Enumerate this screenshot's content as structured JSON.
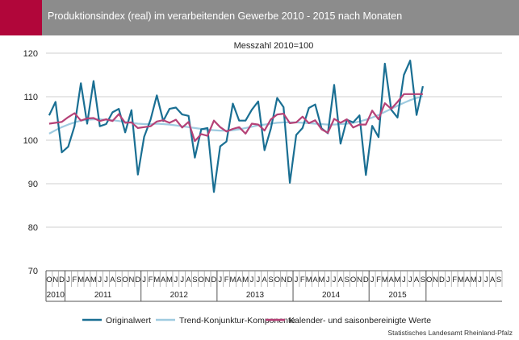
{
  "title": "Produktionsindex (real) im verarbeitenden Gewerbe 2010 - 2015 nach Monaten",
  "source": "Statistisches Landesamt Rheinland-Pfalz",
  "colors": {
    "accent": "#b1063a",
    "header": "#8c8c8c",
    "original": "#1a6f93",
    "trend": "#9fcbe0",
    "seasonal": "#b54277"
  },
  "chart_data": {
    "type": "line",
    "subtitle": "Messzahl 2010=100",
    "ylim": [
      70,
      120
    ],
    "yticks": [
      70,
      80,
      90,
      100,
      110,
      120
    ],
    "grid": true,
    "legend_placement": "bottom",
    "month_labels": [
      "O",
      "N",
      "D",
      "J",
      "F",
      "M",
      "A",
      "M",
      "J",
      "J",
      "A",
      "S",
      "O",
      "N",
      "D",
      "J",
      "F",
      "M",
      "A",
      "M",
      "J",
      "J",
      "A",
      "S",
      "O",
      "N",
      "D",
      "J",
      "F",
      "M",
      "A",
      "M",
      "J",
      "J",
      "A",
      "S",
      "O",
      "N",
      "D",
      "J",
      "F",
      "M",
      "A",
      "M",
      "J",
      "J",
      "A",
      "S",
      "O",
      "N",
      "D",
      "J",
      "F",
      "M",
      "A",
      "M",
      "J",
      "J",
      "A",
      "S",
      "O",
      "N",
      "D",
      "J",
      "F",
      "M",
      "A",
      "M",
      "J",
      "J",
      "A",
      "S"
    ],
    "year_groups": [
      {
        "label": "2010",
        "months": 3
      },
      {
        "label": "2011",
        "months": 12
      },
      {
        "label": "2012",
        "months": 12
      },
      {
        "label": "2013",
        "months": 12
      },
      {
        "label": "2014",
        "months": 12
      },
      {
        "label": "2015",
        "months": 9
      }
    ],
    "series": [
      {
        "name": "Originalwert",
        "values": [
          105.7,
          108.8,
          97.2,
          98.5,
          103.2,
          113.1,
          103.8,
          113.6,
          103.2,
          103.7,
          106.4,
          107.2,
          101.8,
          106.9,
          92.1,
          100.8,
          104.7,
          110.3,
          104.4,
          107.2,
          107.5,
          105.9,
          105.6,
          96.0,
          102.5,
          102.8,
          88.1,
          98.6,
          99.7,
          108.4,
          104.5,
          104.5,
          107.0,
          108.9,
          97.7,
          102.7,
          109.7,
          107.6,
          90.2,
          101.2,
          102.8,
          107.4,
          108.2,
          102.7,
          101.6,
          112.7,
          99.2,
          104.7,
          104.1,
          105.7,
          92.0,
          103.3,
          100.7,
          117.6,
          107.0,
          105.2,
          115.0,
          118.3,
          105.8,
          112.4
        ]
      },
      {
        "name": "Trend-Konjunktur-Komponente",
        "values": [
          101.5,
          102.3,
          103.0,
          103.6,
          104.1,
          104.5,
          104.7,
          104.8,
          104.8,
          104.7,
          104.6,
          104.4,
          104.2,
          104.0,
          103.8,
          103.7,
          103.7,
          103.8,
          103.7,
          103.6,
          103.4,
          103.2,
          103.0,
          102.8,
          102.6,
          102.4,
          102.3,
          102.2,
          102.2,
          102.3,
          102.5,
          102.8,
          103.1,
          103.4,
          103.6,
          103.8,
          104.0,
          104.1,
          104.1,
          104.1,
          104.0,
          103.9,
          103.8,
          103.7,
          103.6,
          103.6,
          103.7,
          103.8,
          104.0,
          104.3,
          104.7,
          105.2,
          105.8,
          106.5,
          107.2,
          107.9,
          108.6,
          109.2,
          109.7,
          110.1
        ]
      },
      {
        "name": "Kalender- und saisonbereinigte Werte",
        "values": [
          103.8,
          104.0,
          104.2,
          105.3,
          106.2,
          104.5,
          105.0,
          105.1,
          104.4,
          104.8,
          104.4,
          106.0,
          104.0,
          104.1,
          102.8,
          103.0,
          103.2,
          104.3,
          104.6,
          104.0,
          104.7,
          102.9,
          104.2,
          99.8,
          101.4,
          101.0,
          104.5,
          103.0,
          102.0,
          102.6,
          103.0,
          101.5,
          103.8,
          103.6,
          102.2,
          104.8,
          105.9,
          106.1,
          103.9,
          104.1,
          105.4,
          103.9,
          104.6,
          102.5,
          101.7,
          104.9,
          104.0,
          104.8,
          102.9,
          103.6,
          103.6,
          106.8,
          104.8,
          108.5,
          107.2,
          108.8,
          110.6,
          110.6,
          110.6,
          110.6
        ]
      }
    ]
  }
}
